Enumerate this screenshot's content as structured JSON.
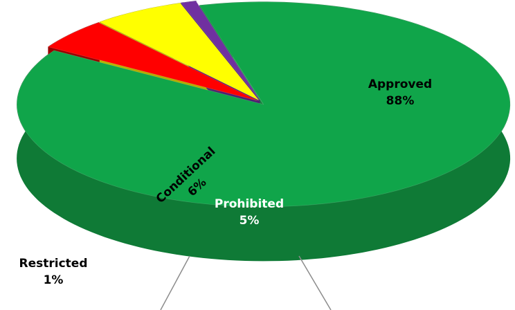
{
  "chart_data": {
    "type": "pie",
    "title": "",
    "slices": [
      {
        "name": "Approved",
        "value": 88,
        "display": "88%",
        "color": "#10a54a",
        "side_color": "#0f7a36",
        "label_color": "#000000"
      },
      {
        "name": "Prohibited",
        "value": 5,
        "display": "5%",
        "color": "#ff0000",
        "side_color": "#990000",
        "label_color": "#ffffff"
      },
      {
        "name": "Conditional",
        "value": 6,
        "display": "6%",
        "color": "#ffff00",
        "side_color": "#b5b300",
        "label_color": "#000000"
      },
      {
        "name": "Restricted",
        "value": 1,
        "display": "1%",
        "color": "#7030a0",
        "side_color": "#4d1f72",
        "label_color": "#000000"
      }
    ],
    "legend": false,
    "style": "3d-pie-exploded"
  }
}
